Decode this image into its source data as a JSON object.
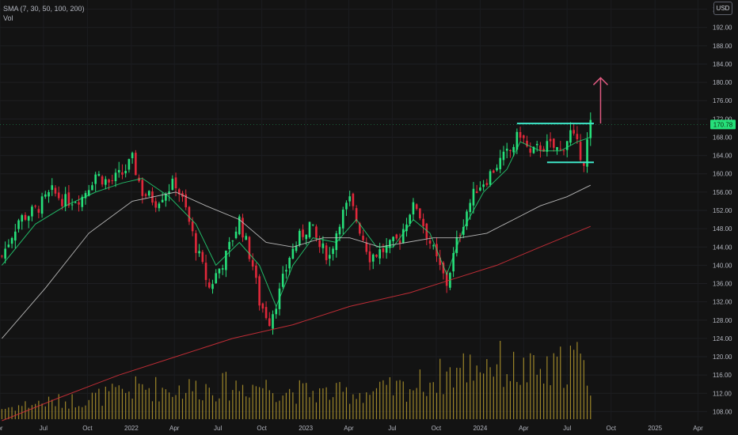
{
  "legend": {
    "indicator": "SMA (7, 30, 50, 100, 200)",
    "volume": "Vol"
  },
  "currency": "USD",
  "last_price_label": "170.78",
  "colors": {
    "background": "#131313",
    "up": "#26e07a",
    "down": "#e0283a",
    "volume": "#b59a2e",
    "sma_short": "#26e07a",
    "sma_mid": "#c8c8c8",
    "sma_long": "#d0303a",
    "annotation": "#3ee6c8",
    "arrow": "#e05a80",
    "price_tag": "#26e07a"
  },
  "chart_data": {
    "type": "candlestick",
    "y_axis": {
      "ticks": [
        108,
        112,
        116,
        120,
        124,
        128,
        132,
        136,
        140,
        144,
        148,
        152,
        156,
        160,
        164,
        168,
        172,
        176,
        180,
        184,
        188,
        192,
        196
      ],
      "tick_labels": [
        "108.00",
        "112.00",
        "116.00",
        "120.00",
        "124.00",
        "128.00",
        "132.00",
        "136.00",
        "140.00",
        "144.00",
        "148.00",
        "152.00",
        "156.00",
        "160.00",
        "164.00",
        "168.00",
        "172.00",
        "176.00",
        "180.00",
        "184.00",
        "188.00",
        "192.00",
        "196.00"
      ],
      "range": [
        106,
        198
      ]
    },
    "x_axis": {
      "range": [
        "2021-04-01",
        "2025-04-20"
      ],
      "ticks": [
        {
          "label": "pr",
          "date": "2021-04-01"
        },
        {
          "label": "Jul",
          "date": "2021-07-01"
        },
        {
          "label": "Oct",
          "date": "2021-10-01"
        },
        {
          "label": "2022",
          "date": "2022-01-01"
        },
        {
          "label": "Apr",
          "date": "2022-04-01"
        },
        {
          "label": "Jul",
          "date": "2022-07-01"
        },
        {
          "label": "Oct",
          "date": "2022-10-01"
        },
        {
          "label": "2023",
          "date": "2023-01-01"
        },
        {
          "label": "Apr",
          "date": "2023-04-01"
        },
        {
          "label": "Jul",
          "date": "2023-07-01"
        },
        {
          "label": "Oct",
          "date": "2023-10-01"
        },
        {
          "label": "2024",
          "date": "2024-01-01"
        },
        {
          "label": "Apr",
          "date": "2024-04-01"
        },
        {
          "label": "Jul",
          "date": "2024-07-01"
        },
        {
          "label": "Oct",
          "date": "2024-10-01"
        },
        {
          "label": "2025",
          "date": "2025-01-01"
        },
        {
          "label": "Apr",
          "date": "2025-04-01"
        }
      ]
    },
    "price_path": [
      [
        "2021-04-05",
        142
      ],
      [
        "2021-05-10",
        150
      ],
      [
        "2021-06-14",
        152
      ],
      [
        "2021-07-19",
        156
      ],
      [
        "2021-08-16",
        154
      ],
      [
        "2021-09-20",
        155
      ],
      [
        "2021-10-18",
        160
      ],
      [
        "2021-11-15",
        158
      ],
      [
        "2021-12-13",
        160
      ],
      [
        "2022-01-03",
        163
      ],
      [
        "2022-01-24",
        156
      ],
      [
        "2022-02-21",
        154
      ],
      [
        "2022-03-21",
        157
      ],
      [
        "2022-04-04",
        158
      ],
      [
        "2022-04-25",
        152
      ],
      [
        "2022-05-16",
        144
      ],
      [
        "2022-06-13",
        135
      ],
      [
        "2022-06-27",
        138
      ],
      [
        "2022-07-18",
        142
      ],
      [
        "2022-08-15",
        150
      ],
      [
        "2022-09-12",
        140
      ],
      [
        "2022-09-26",
        132
      ],
      [
        "2022-10-17",
        128
      ],
      [
        "2022-11-07",
        134
      ],
      [
        "2022-11-28",
        142
      ],
      [
        "2022-12-19",
        146
      ],
      [
        "2023-01-09",
        149
      ],
      [
        "2023-01-30",
        144
      ],
      [
        "2023-02-20",
        142
      ],
      [
        "2023-03-13",
        150
      ],
      [
        "2023-04-03",
        154
      ],
      [
        "2023-04-24",
        148
      ],
      [
        "2023-05-15",
        142
      ],
      [
        "2023-06-05",
        143
      ],
      [
        "2023-06-26",
        144
      ],
      [
        "2023-07-17",
        146
      ],
      [
        "2023-08-07",
        152
      ],
      [
        "2023-08-21",
        153
      ],
      [
        "2023-09-11",
        147
      ],
      [
        "2023-10-02",
        141
      ],
      [
        "2023-10-23",
        136
      ],
      [
        "2023-11-13",
        145
      ],
      [
        "2023-12-04",
        152
      ],
      [
        "2023-12-25",
        157
      ],
      [
        "2024-01-15",
        159
      ],
      [
        "2024-02-05",
        162
      ],
      [
        "2024-03-04",
        165
      ],
      [
        "2024-03-25",
        169
      ],
      [
        "2024-04-15",
        164
      ],
      [
        "2024-05-06",
        166
      ],
      [
        "2024-05-27",
        166
      ],
      [
        "2024-06-17",
        165
      ],
      [
        "2024-07-08",
        169
      ],
      [
        "2024-07-22",
        166
      ],
      [
        "2024-08-05",
        163
      ],
      [
        "2024-08-19",
        170.78
      ]
    ],
    "sma_series": [
      {
        "role": "short",
        "values": [
          [
            "2021-04-05",
            140
          ],
          [
            "2021-06-14",
            149
          ],
          [
            "2021-08-16",
            153
          ],
          [
            "2021-10-18",
            156
          ],
          [
            "2021-12-13",
            158
          ],
          [
            "2022-01-24",
            159
          ],
          [
            "2022-03-21",
            155
          ],
          [
            "2022-05-16",
            149
          ],
          [
            "2022-06-27",
            140
          ],
          [
            "2022-08-15",
            145
          ],
          [
            "2022-09-26",
            140
          ],
          [
            "2022-10-31",
            131
          ],
          [
            "2022-12-05",
            140
          ],
          [
            "2023-01-16",
            146
          ],
          [
            "2023-03-06",
            145
          ],
          [
            "2023-04-17",
            150
          ],
          [
            "2023-05-29",
            144
          ],
          [
            "2023-07-03",
            144
          ],
          [
            "2023-08-14",
            150
          ],
          [
            "2023-09-18",
            147
          ],
          [
            "2023-10-23",
            138
          ],
          [
            "2023-11-27",
            148
          ],
          [
            "2024-01-08",
            156
          ],
          [
            "2024-02-26",
            161
          ],
          [
            "2024-03-25",
            167
          ],
          [
            "2024-05-06",
            165
          ],
          [
            "2024-06-17",
            165
          ],
          [
            "2024-07-22",
            167
          ],
          [
            "2024-08-19",
            168
          ]
        ]
      },
      {
        "role": "mid",
        "values": [
          [
            "2021-04-05",
            124
          ],
          [
            "2021-07-05",
            135
          ],
          [
            "2021-10-04",
            147
          ],
          [
            "2022-01-03",
            154
          ],
          [
            "2022-04-04",
            156
          ],
          [
            "2022-06-06",
            153
          ],
          [
            "2022-08-15",
            150
          ],
          [
            "2022-10-10",
            145
          ],
          [
            "2022-12-05",
            144
          ],
          [
            "2023-02-06",
            146
          ],
          [
            "2023-04-03",
            146
          ],
          [
            "2023-06-05",
            144
          ],
          [
            "2023-07-31",
            145
          ],
          [
            "2023-09-25",
            146
          ],
          [
            "2023-11-20",
            146
          ],
          [
            "2024-01-15",
            147
          ],
          [
            "2024-03-11",
            150
          ],
          [
            "2024-05-06",
            153
          ],
          [
            "2024-07-01",
            155
          ],
          [
            "2024-08-19",
            157.5
          ]
        ]
      },
      {
        "role": "long",
        "values": [
          [
            "2021-04-05",
            106
          ],
          [
            "2021-08-02",
            111
          ],
          [
            "2021-12-06",
            116
          ],
          [
            "2022-04-04",
            120
          ],
          [
            "2022-08-01",
            124
          ],
          [
            "2022-12-05",
            127
          ],
          [
            "2023-04-03",
            131
          ],
          [
            "2023-08-07",
            134
          ],
          [
            "2023-11-06",
            137
          ],
          [
            "2024-02-05",
            140
          ],
          [
            "2024-05-06",
            144
          ],
          [
            "2024-08-19",
            148.5
          ]
        ]
      }
    ],
    "volume_profile": [
      [
        "2021-04-05",
        0.1
      ],
      [
        "2021-06-14",
        0.15
      ],
      [
        "2021-09-13",
        0.18
      ],
      [
        "2021-12-13",
        0.25
      ],
      [
        "2022-01-24",
        0.3
      ],
      [
        "2022-03-21",
        0.28
      ],
      [
        "2022-06-13",
        0.3
      ],
      [
        "2022-09-26",
        0.32
      ],
      [
        "2022-11-14",
        0.27
      ],
      [
        "2023-02-20",
        0.24
      ],
      [
        "2023-05-15",
        0.25
      ],
      [
        "2023-08-07",
        0.3
      ],
      [
        "2023-10-23",
        0.42
      ],
      [
        "2023-12-11",
        0.5
      ],
      [
        "2024-01-22",
        0.55
      ],
      [
        "2024-03-18",
        0.45
      ],
      [
        "2024-05-27",
        0.42
      ],
      [
        "2024-07-15",
        0.6
      ],
      [
        "2024-08-19",
        0.35
      ]
    ],
    "annotations": {
      "upper_line": {
        "from": "2024-03-18",
        "to": "2024-08-26",
        "value": 171
      },
      "lower_line": {
        "from": "2024-05-20",
        "to": "2024-08-26",
        "value": 162.5
      },
      "arrow": {
        "date": "2024-09-09",
        "from_value": 171,
        "to_value": 181
      }
    }
  }
}
